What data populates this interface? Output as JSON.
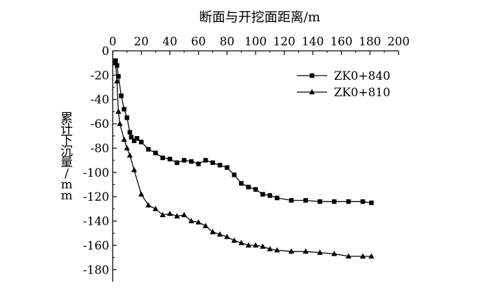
{
  "chart_data": {
    "type": "line",
    "xlabel": "断面与开挖面距离/m",
    "ylabel": "累计下沉量/mm",
    "x_axis_position": "top",
    "xlim": [
      0,
      200
    ],
    "ylim": [
      -190,
      0
    ],
    "x_ticks": [
      0,
      20,
      40,
      60,
      80,
      100,
      120,
      140,
      160,
      180,
      200
    ],
    "y_ticks": [
      0,
      -20,
      -40,
      -60,
      -80,
      -100,
      -120,
      -140,
      -160,
      -180
    ],
    "grid": false,
    "legend_position": "top-right",
    "series": [
      {
        "name": "ZK0+840",
        "marker": "square",
        "x": [
          2,
          3,
          4,
          6,
          8,
          10,
          12,
          13,
          15,
          17,
          20,
          25,
          30,
          35,
          40,
          45,
          50,
          55,
          60,
          65,
          70,
          75,
          80,
          85,
          90,
          95,
          100,
          105,
          110,
          115,
          125,
          135,
          145,
          155,
          165,
          175,
          181
        ],
        "y": [
          -8,
          -12,
          -21,
          -37,
          -48,
          -55,
          -67,
          -71,
          -74,
          -72,
          -75,
          -81,
          -84,
          -88,
          -89,
          -92,
          -90,
          -91,
          -93,
          -90,
          -92,
          -94,
          -96,
          -102,
          -109,
          -112,
          -114,
          -118,
          -119,
          -121,
          -123,
          -123,
          -124,
          -124,
          -124,
          -124,
          -125
        ]
      },
      {
        "name": "ZK0+810",
        "marker": "triangle",
        "x": [
          2,
          3,
          4,
          5,
          8,
          10,
          12,
          15,
          20,
          25,
          30,
          35,
          40,
          45,
          50,
          55,
          60,
          65,
          70,
          75,
          80,
          85,
          90,
          95,
          100,
          105,
          110,
          115,
          125,
          135,
          145,
          155,
          165,
          175,
          181
        ],
        "y": [
          -10,
          -25,
          -50,
          -60,
          -73,
          -80,
          -86,
          -98,
          -118,
          -127,
          -130,
          -135,
          -134,
          -136,
          -135,
          -140,
          -141,
          -144,
          -149,
          -151,
          -153,
          -156,
          -158,
          -160,
          -160,
          -161,
          -163,
          -164,
          -165,
          -165,
          -166,
          -167,
          -169,
          -169,
          -169
        ]
      }
    ]
  }
}
